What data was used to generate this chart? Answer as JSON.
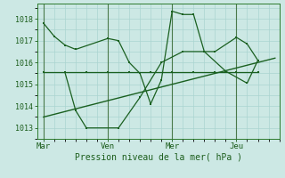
{
  "xlabel": "Pression niveau de la mer( hPa )",
  "background_color": "#cce8e4",
  "grid_color": "#aad4d0",
  "line_color": "#1a6020",
  "text_color": "#1a5c1a",
  "axis_color": "#2d7a2d",
  "vline_color": "#4a7a4a",
  "ylim": [
    1012.5,
    1018.7
  ],
  "yticks": [
    1013,
    1014,
    1015,
    1016,
    1017,
    1018
  ],
  "xtick_labels": [
    "Mar",
    "Ven",
    "Mer",
    "Jeu"
  ],
  "xtick_positions": [
    0,
    30,
    60,
    90
  ],
  "vline_positions": [
    0,
    30,
    60,
    90
  ],
  "xlim": [
    -3,
    110
  ],
  "series1_x": [
    0,
    5,
    10,
    15,
    30,
    35,
    40,
    45,
    50,
    55,
    60,
    65,
    70,
    75,
    80,
    90,
    95,
    100
  ],
  "series1_y": [
    1017.8,
    1017.2,
    1016.8,
    1016.6,
    1017.1,
    1017.0,
    1016.0,
    1015.5,
    1014.1,
    1015.2,
    1018.35,
    1018.2,
    1018.2,
    1016.5,
    1016.5,
    1017.15,
    1016.85,
    1016.1
  ],
  "series2_x": [
    0,
    10,
    20,
    30,
    40,
    50,
    60,
    70,
    80,
    90,
    100
  ],
  "series2_y": [
    1015.55,
    1015.55,
    1015.55,
    1015.55,
    1015.55,
    1015.55,
    1015.55,
    1015.55,
    1015.55,
    1015.55,
    1015.55
  ],
  "series3_x": [
    10,
    15,
    20,
    35,
    45,
    55,
    65,
    75,
    85,
    95,
    100
  ],
  "series3_y": [
    1015.55,
    1013.8,
    1013.0,
    1013.0,
    1014.4,
    1016.0,
    1016.5,
    1016.5,
    1015.6,
    1015.05,
    1016.1
  ],
  "trend_x": [
    0,
    108
  ],
  "trend_y": [
    1013.5,
    1016.2
  ]
}
